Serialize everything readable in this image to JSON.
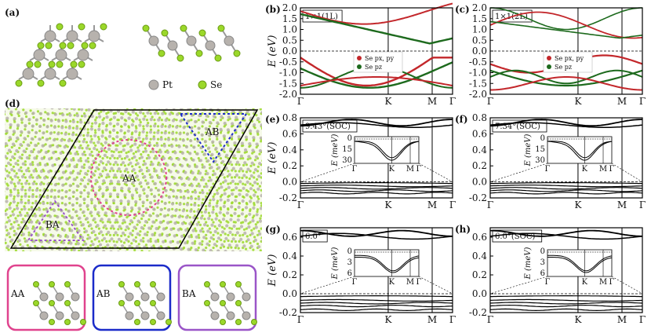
{
  "panels": {
    "a": {
      "label": "(a)",
      "legend": [
        {
          "name": "Pt",
          "color": "#b7b2ad"
        },
        {
          "name": "Se",
          "color": "#9bd82a"
        }
      ]
    },
    "b": {
      "label": "(b)",
      "tag": "1×1(1L)",
      "ylabel": "E (eV)",
      "yticks": [
        "2.0",
        "1.5",
        "1.0",
        "0.5",
        "0.0",
        "-0.5",
        "-1.0",
        "-1.5",
        "-2.0"
      ],
      "xticks": [
        "Γ",
        "K",
        "M",
        "Γ"
      ],
      "legend": [
        {
          "name": "Se px, py",
          "color": "#c3272b"
        },
        {
          "name": "Se pz",
          "color": "#1d6a1d"
        }
      ]
    },
    "c": {
      "label": "(c)",
      "tag": "1×1(2L)",
      "yticks": [
        "2.0",
        "1.5",
        "1.0",
        "0.5",
        "0.0",
        "-0.5",
        "-1.0",
        "-1.5",
        "-2.0"
      ],
      "xticks": [
        "Γ",
        "K",
        "M",
        "Γ"
      ],
      "legend": [
        {
          "name": "Se px, py",
          "color": "#c3272b"
        },
        {
          "name": "Se pz",
          "color": "#1d6a1d"
        }
      ]
    },
    "d": {
      "label": "(d)",
      "regions": [
        {
          "name": "AA",
          "color": "#e0438e"
        },
        {
          "name": "AB",
          "color": "#1b2bc9"
        },
        {
          "name": "BA",
          "color": "#9a55c8"
        }
      ]
    },
    "e": {
      "label": "(e)",
      "tag": "9.43°(SOC)",
      "ylabel": "E (eV)",
      "yticks": [
        "0.8",
        "0.6",
        "0.4",
        "0.2",
        "0.0",
        "-0.2"
      ],
      "xticks": [
        "Γ",
        "K",
        "M",
        "Γ"
      ],
      "inset": {
        "ylabel": "E (meV)",
        "yticks": [
          "0",
          "15",
          "30"
        ],
        "xticks": [
          "Γ",
          "K",
          "M",
          "Γ"
        ]
      }
    },
    "f": {
      "label": "(f)",
      "tag": "7.34°(SOC)",
      "yticks": [
        "0.8",
        "0.6",
        "0.4",
        "0.2",
        "0.0",
        "-0.2"
      ],
      "xticks": [
        "Γ",
        "K",
        "M",
        "Γ"
      ],
      "inset": {
        "ylabel": "E (meV)",
        "yticks": [
          "0",
          "15",
          "30"
        ],
        "xticks": [
          "Γ",
          "K",
          "M",
          "Γ"
        ]
      }
    },
    "g": {
      "label": "(g)",
      "tag": "6.0°",
      "ylabel": "E (eV)",
      "yticks": [
        "0.6",
        "0.4",
        "0.2",
        "0.0",
        "-0.2"
      ],
      "xticks": [
        "Γ",
        "K",
        "M",
        "Γ"
      ],
      "inset": {
        "ylabel": "E (meV)",
        "yticks": [
          "0",
          "3",
          "6"
        ],
        "xticks": [
          "Γ",
          "K",
          "M",
          "Γ"
        ]
      }
    },
    "h": {
      "label": "(h)",
      "tag": "6.0°(SOC)",
      "yticks": [
        "0.6",
        "0.4",
        "0.2",
        "0.0",
        "-0.2"
      ],
      "xticks": [
        "Γ",
        "K",
        "M",
        "Γ"
      ],
      "inset": {
        "ylabel": "E (meV)",
        "yticks": [
          "0",
          "3",
          "6"
        ],
        "xticks": [
          "Γ",
          "K",
          "M",
          "Γ"
        ]
      }
    }
  },
  "stacking_boxes": [
    {
      "name": "AA",
      "color": "#e0438e"
    },
    {
      "name": "AB",
      "color": "#1b2bc9"
    },
    {
      "name": "BA",
      "color": "#9a55c8"
    }
  ]
}
